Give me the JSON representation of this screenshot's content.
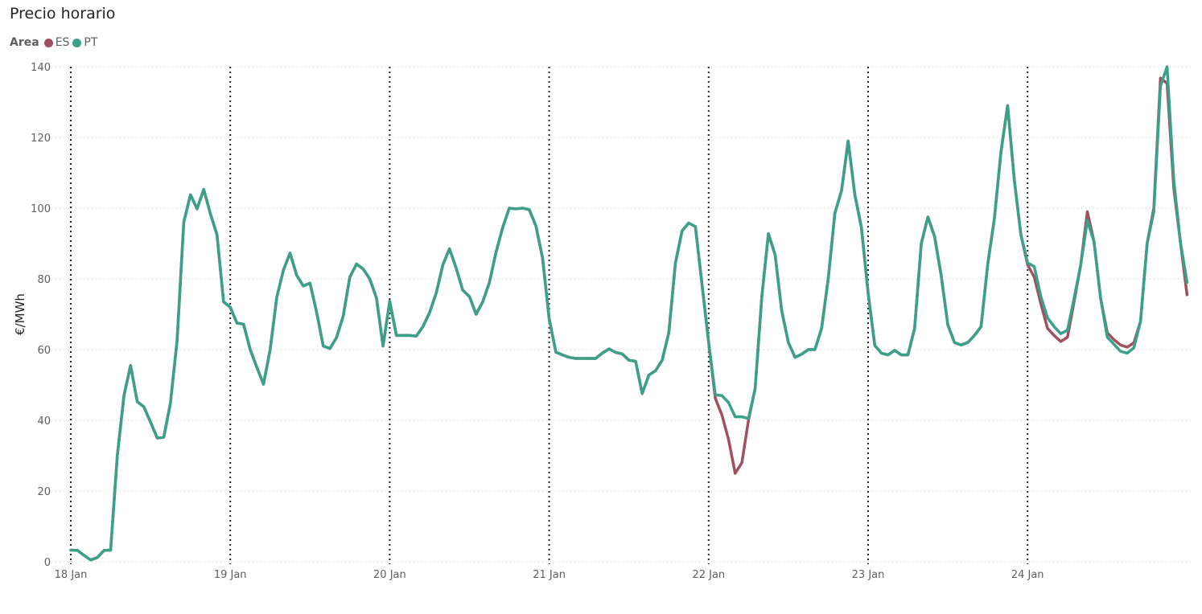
{
  "chart_data": {
    "type": "line",
    "title": "Precio horario",
    "legend_title": "Area",
    "legend_position": "top-left",
    "ylabel": "€/MWh",
    "xlabel": "",
    "ylim": [
      0,
      140
    ],
    "yticks": [
      0,
      20,
      40,
      60,
      80,
      100,
      120,
      140
    ],
    "xticks": [
      "18 Jan",
      "19 Jan",
      "20 Jan",
      "21 Jan",
      "22 Jan",
      "23 Jan",
      "24 Jan"
    ],
    "grid": "horizontal dotted; vertical dotted lines at day boundaries",
    "x_unit": "hour index starting 18 Jan 00:00, 1 point per hour",
    "series": [
      {
        "name": "ES",
        "color": "#A0505E",
        "values": [
          3.3,
          3.2,
          1.8,
          0.5,
          1.2,
          3.2,
          3.3,
          30,
          47,
          55.5,
          45.3,
          43.8,
          39.5,
          35,
          35.2,
          45,
          62.5,
          96,
          103.8,
          99.8,
          105.3,
          98.5,
          92.5,
          73.5,
          72,
          67.5,
          67.2,
          60,
          55,
          50.2,
          60,
          74.8,
          82.5,
          87.3,
          81,
          78,
          78.8,
          70.5,
          61,
          60.3,
          63.4,
          69.5,
          80.5,
          84.2,
          82.8,
          80,
          74.6,
          61,
          73.7,
          64,
          64,
          64,
          63.8,
          66.5,
          70.5,
          76,
          84,
          88.5,
          83,
          76.8,
          75,
          70,
          73.5,
          79,
          87.5,
          94.5,
          100,
          99.8,
          100,
          99.6,
          95,
          86,
          68.7,
          59.3,
          58.5,
          57.8,
          57.5,
          57.5,
          57.5,
          57.5,
          59,
          60.2,
          59.2,
          58.8,
          57,
          56.7,
          47.6,
          52.8,
          54,
          57,
          64.8,
          84.5,
          93.6,
          95.8,
          94.8,
          78.5,
          62,
          46.2,
          41.5,
          34.5,
          25,
          28,
          40,
          49,
          75,
          92.8,
          86.8,
          71,
          62,
          57.8,
          58.7,
          60,
          60,
          66,
          80,
          98.6,
          105,
          119,
          103.8,
          94.5,
          76,
          61.2,
          59,
          58.5,
          59.8,
          58.5,
          58.5,
          66,
          90,
          97.5,
          92,
          81,
          67,
          62,
          61.3,
          62,
          64,
          66.5,
          84,
          97,
          116,
          129,
          108,
          92.5,
          84,
          80.5,
          73,
          66,
          64,
          62.3,
          63.5,
          73.5,
          84,
          99,
          90.5,
          74.5,
          64.8,
          62.8,
          61.3,
          60.7,
          61.9,
          68,
          90,
          100,
          136.8,
          135.3,
          105.7,
          90.5,
          75.5
        ]
      },
      {
        "name": "PT",
        "color": "#3AA08A",
        "values": [
          3.3,
          3.2,
          1.8,
          0.5,
          1.2,
          3.2,
          3.3,
          30,
          47,
          55.5,
          45.3,
          43.8,
          39.5,
          35,
          35.2,
          45,
          62.5,
          96,
          103.8,
          99.8,
          105.3,
          98.5,
          92.5,
          73.5,
          72,
          67.5,
          67.2,
          60,
          55,
          50.2,
          60,
          74.8,
          82.5,
          87.3,
          81,
          78,
          78.8,
          70.5,
          61,
          60.3,
          63.4,
          69.5,
          80.5,
          84.2,
          82.8,
          80,
          74.6,
          61,
          73.7,
          64,
          64,
          64,
          63.8,
          66.5,
          70.5,
          76,
          84,
          88.5,
          83,
          76.8,
          75,
          70,
          73.5,
          79,
          87.5,
          94.5,
          100,
          99.8,
          100,
          99.6,
          95,
          86,
          68.7,
          59.3,
          58.5,
          57.8,
          57.5,
          57.5,
          57.5,
          57.5,
          59,
          60.2,
          59.2,
          58.8,
          57,
          56.7,
          47.6,
          52.8,
          54,
          57,
          64.8,
          84.5,
          93.6,
          95.8,
          94.8,
          78.5,
          62,
          47.2,
          47,
          45,
          41,
          41,
          40.5,
          49,
          75,
          92.8,
          86.8,
          71,
          62,
          57.8,
          58.7,
          60,
          60,
          66,
          80,
          98.6,
          105,
          119,
          103.8,
          94.5,
          76,
          61.2,
          59,
          58.5,
          59.8,
          58.5,
          58.5,
          66,
          90,
          97.5,
          92,
          81,
          67,
          62,
          61.3,
          62,
          64,
          66.5,
          84,
          97,
          116,
          129,
          108,
          92.5,
          84.5,
          83.5,
          75,
          69,
          66.5,
          64.5,
          65.5,
          74.5,
          84,
          96.5,
          90.5,
          74.5,
          63.5,
          61.5,
          59.5,
          59,
          60.5,
          68,
          90,
          99,
          134.5,
          140,
          108,
          90.5,
          79
        ]
      }
    ]
  }
}
